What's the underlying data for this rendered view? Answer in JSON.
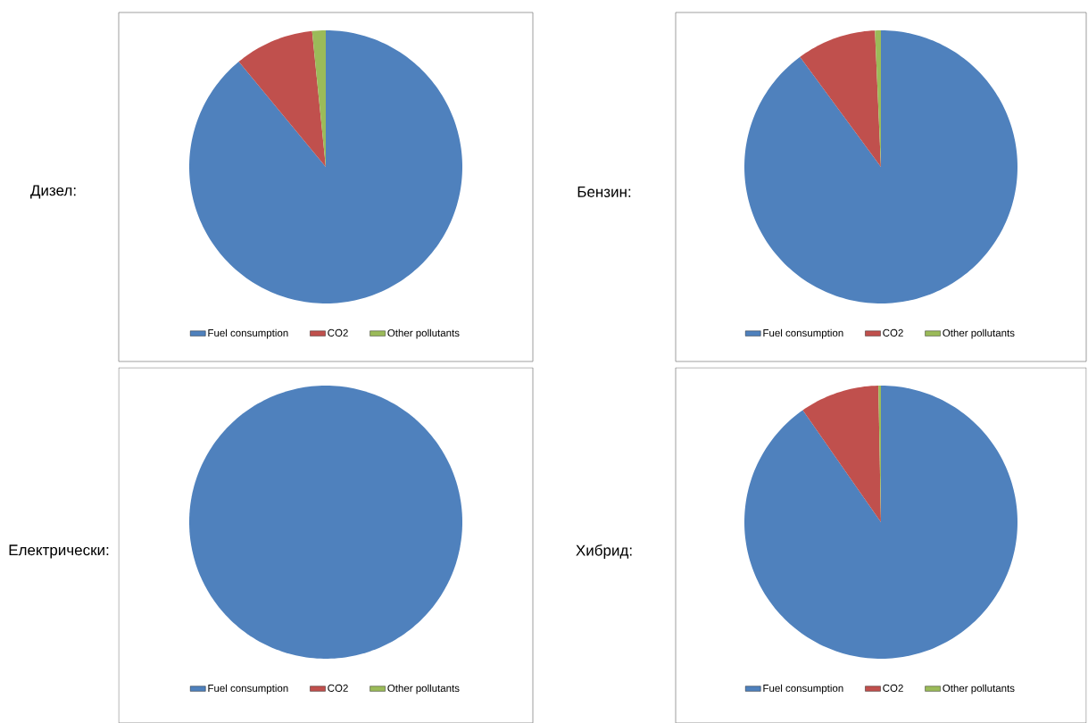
{
  "chart_data": [
    {
      "type": "pie",
      "title": "Дизел:",
      "categories": [
        "Fuel consumption",
        "CO2",
        "Other pollutants"
      ],
      "values": [
        89,
        9.4,
        1.6
      ],
      "colors": [
        "#4f81bd",
        "#c0504d",
        "#9bbb59"
      ],
      "legend": "bottom"
    },
    {
      "type": "pie",
      "title": "Бензин:",
      "categories": [
        "Fuel consumption",
        "CO2",
        "Other pollutants"
      ],
      "values": [
        89.9,
        9.4,
        0.7
      ],
      "colors": [
        "#4f81bd",
        "#c0504d",
        "#9bbb59"
      ],
      "legend": "bottom"
    },
    {
      "type": "pie",
      "title": "Електрически:",
      "categories": [
        "Fuel consumption",
        "CO2",
        "Other pollutants"
      ],
      "values": [
        100,
        0,
        0
      ],
      "colors": [
        "#4f81bd",
        "#c0504d",
        "#9bbb59"
      ],
      "legend": "bottom"
    },
    {
      "type": "pie",
      "title": "Хибрид:",
      "categories": [
        "Fuel consumption",
        "CO2",
        "Other pollutants"
      ],
      "values": [
        90.3,
        9.4,
        0.3
      ],
      "colors": [
        "#4f81bd",
        "#c0504d",
        "#9bbb59"
      ],
      "legend": "bottom"
    }
  ]
}
